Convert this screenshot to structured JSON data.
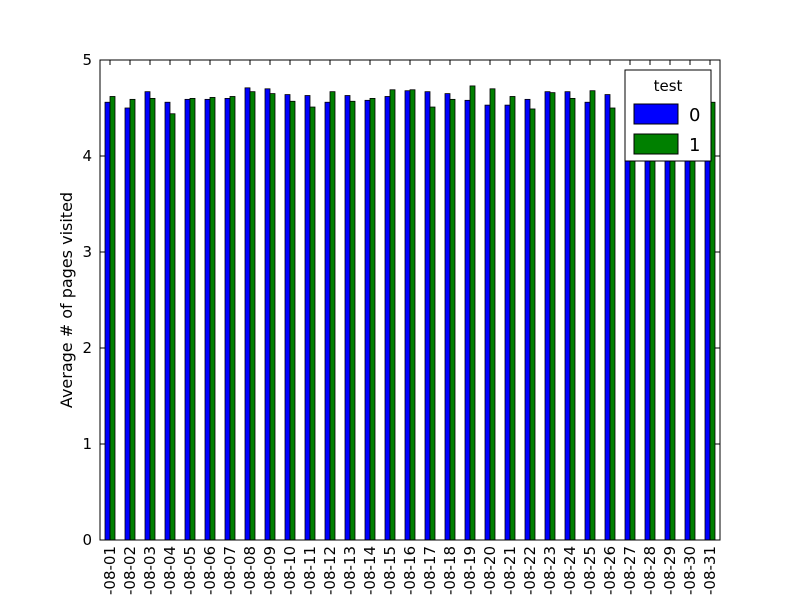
{
  "chart_data": {
    "type": "bar",
    "title": "",
    "xlabel": "",
    "ylabel": "Average # of pages visited",
    "ylim": [
      0,
      5
    ],
    "yticks": [
      0,
      1,
      2,
      3,
      4,
      5
    ],
    "grid": false,
    "legend": {
      "title": "test",
      "placement": "top-right"
    },
    "categories": [
      "-08-01",
      "-08-02",
      "-08-03",
      "-08-04",
      "-08-05",
      "-08-06",
      "-08-07",
      "-08-08",
      "-08-09",
      "-08-10",
      "-08-11",
      "-08-12",
      "-08-13",
      "-08-14",
      "-08-15",
      "-08-16",
      "-08-17",
      "-08-18",
      "-08-19",
      "-08-20",
      "-08-21",
      "-08-22",
      "-08-23",
      "-08-24",
      "-08-25",
      "-08-26",
      "-08-27",
      "-08-28",
      "-08-29",
      "-08-30",
      "-08-31"
    ],
    "series": [
      {
        "name": "0",
        "color": "#0000ff",
        "values": [
          4.56,
          4.5,
          4.67,
          4.56,
          4.59,
          4.59,
          4.6,
          4.71,
          4.7,
          4.64,
          4.63,
          4.56,
          4.63,
          4.58,
          4.62,
          4.68,
          4.67,
          4.65,
          4.58,
          4.53,
          4.53,
          4.59,
          4.67,
          4.67,
          4.56,
          4.64,
          4.6,
          4.62,
          4.55,
          4.6,
          4.55
        ]
      },
      {
        "name": "1",
        "color": "#008000",
        "values": [
          4.62,
          4.59,
          4.6,
          4.44,
          4.6,
          4.61,
          4.62,
          4.67,
          4.65,
          4.57,
          4.51,
          4.67,
          4.57,
          4.6,
          4.69,
          4.69,
          4.51,
          4.59,
          4.73,
          4.7,
          4.62,
          4.49,
          4.66,
          4.6,
          4.68,
          4.5,
          4.58,
          4.62,
          4.55,
          4.6,
          4.56
        ]
      }
    ]
  }
}
